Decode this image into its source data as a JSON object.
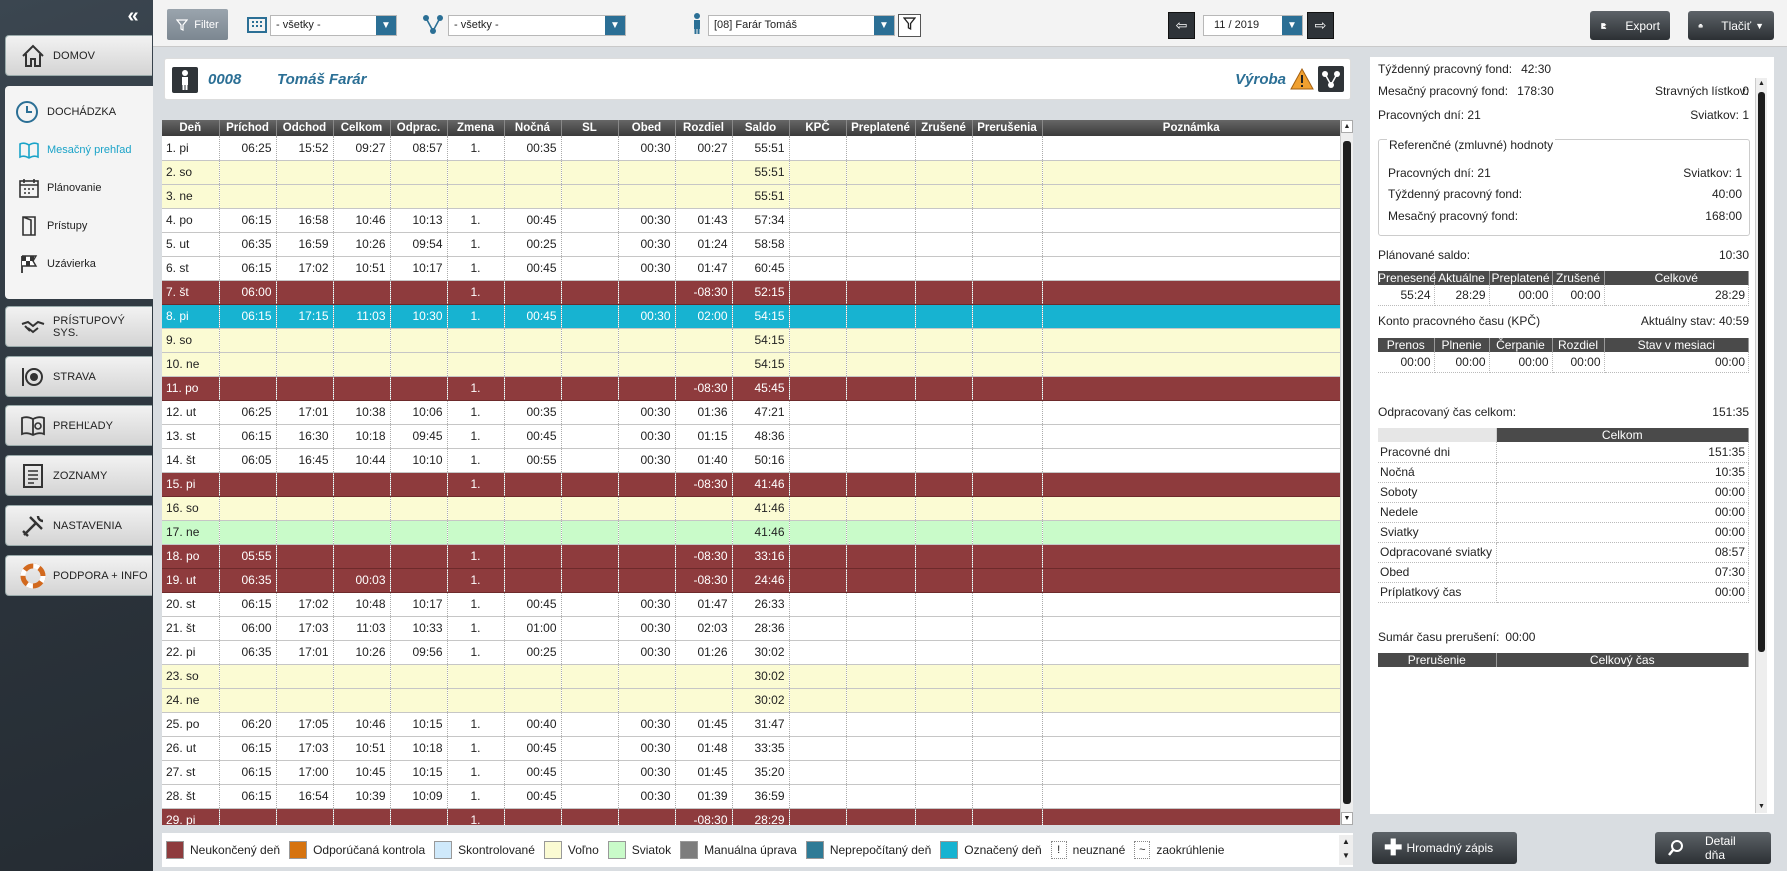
{
  "sidebar": {
    "items": [
      {
        "label": "DOMOV",
        "icon": "home-icon"
      },
      {
        "label": "DOCHÁDZKA",
        "icon": "clock-icon"
      },
      {
        "label": "PRÍSTUPOVÝ SYS.",
        "icon": "handshake-icon"
      },
      {
        "label": "STRAVA",
        "icon": "plate-icon"
      },
      {
        "label": "PREHĽADY",
        "icon": "report-icon"
      },
      {
        "label": "ZOZNAMY",
        "icon": "list-icon"
      },
      {
        "label": "NASTAVENIA",
        "icon": "tools-icon"
      },
      {
        "label": "PODPORA + INFO",
        "icon": "lifebuoy-icon"
      }
    ],
    "sub": [
      {
        "label": "Mesačný prehľad",
        "active": true
      },
      {
        "label": "Plánovanie"
      },
      {
        "label": "Prístupy"
      },
      {
        "label": "Uzávierka"
      }
    ]
  },
  "toolbar": {
    "filter": "Filter",
    "org": "- všetky -",
    "group": "- všetky -",
    "person": "[08] Farár Tomáš",
    "month": "11 / 2019",
    "export": "Export",
    "print": "Tlačiť"
  },
  "header": {
    "id": "0008",
    "name": "Tomáš Farár",
    "dept": "Výroba"
  },
  "columns": [
    "Deň",
    "Príchod",
    "Odchod",
    "Celkom",
    "Odprac.",
    "Zmena",
    "Nočná",
    "SL",
    "Obed",
    "Rozdiel",
    "Saldo",
    "KPČ",
    "Preplatené",
    "Zrušené",
    "Prerušenia",
    "Poznámka"
  ],
  "rows": [
    {
      "t": "w",
      "c": [
        "1. pi",
        "06:25",
        "15:52",
        "09:27",
        "08:57",
        "1.",
        "00:35",
        "",
        "00:30",
        "00:27",
        "55:51"
      ]
    },
    {
      "t": "y",
      "c": [
        "2. so",
        "",
        "",
        "",
        "",
        "",
        "",
        "",
        "",
        "",
        "55:51"
      ]
    },
    {
      "t": "y",
      "c": [
        "3. ne",
        "",
        "",
        "",
        "",
        "",
        "",
        "",
        "",
        "",
        "55:51"
      ]
    },
    {
      "t": "w",
      "c": [
        "4. po",
        "06:15",
        "16:58",
        "10:46",
        "10:13",
        "1.",
        "00:45",
        "",
        "00:30",
        "01:43",
        "57:34"
      ]
    },
    {
      "t": "w",
      "c": [
        "5. ut",
        "06:35",
        "16:59",
        "10:26",
        "09:54",
        "1.",
        "00:25",
        "",
        "00:30",
        "01:24",
        "58:58"
      ]
    },
    {
      "t": "w",
      "c": [
        "6. st",
        "06:15",
        "17:02",
        "10:51",
        "10:17",
        "1.",
        "00:45",
        "",
        "00:30",
        "01:47",
        "60:45"
      ]
    },
    {
      "t": "r",
      "c": [
        "7. št",
        "06:00",
        "",
        "",
        "",
        "1.",
        "",
        "",
        "",
        "-08:30",
        "52:15"
      ]
    },
    {
      "t": "c",
      "c": [
        "8. pi",
        "06:15",
        "17:15",
        "11:03",
        "10:30",
        "1.",
        "00:45",
        "",
        "00:30",
        "02:00",
        "54:15"
      ]
    },
    {
      "t": "y",
      "c": [
        "9. so",
        "",
        "",
        "",
        "",
        "",
        "",
        "",
        "",
        "",
        "54:15"
      ]
    },
    {
      "t": "y",
      "c": [
        "10. ne",
        "",
        "",
        "",
        "",
        "",
        "",
        "",
        "",
        "",
        "54:15"
      ]
    },
    {
      "t": "r",
      "c": [
        "11. po",
        "",
        "",
        "",
        "",
        "1.",
        "",
        "",
        "",
        "-08:30",
        "45:45"
      ]
    },
    {
      "t": "w",
      "c": [
        "12. ut",
        "06:25",
        "17:01",
        "10:38",
        "10:06",
        "1.",
        "00:35",
        "",
        "00:30",
        "01:36",
        "47:21"
      ]
    },
    {
      "t": "w",
      "c": [
        "13. st",
        "06:15",
        "16:30",
        "10:18",
        "09:45",
        "1.",
        "00:45",
        "",
        "00:30",
        "01:15",
        "48:36"
      ]
    },
    {
      "t": "w",
      "c": [
        "14. št",
        "06:05",
        "16:45",
        "10:44",
        "10:10",
        "1.",
        "00:55",
        "",
        "00:30",
        "01:40",
        "50:16"
      ]
    },
    {
      "t": "r",
      "c": [
        "15. pi",
        "",
        "",
        "",
        "",
        "1.",
        "",
        "",
        "",
        "-08:30",
        "41:46"
      ]
    },
    {
      "t": "y",
      "c": [
        "16. so",
        "",
        "",
        "",
        "",
        "",
        "",
        "",
        "",
        "",
        "41:46"
      ]
    },
    {
      "t": "g2",
      "c": [
        "17. ne",
        "",
        "",
        "",
        "",
        "",
        "",
        "",
        "",
        "",
        "41:46"
      ]
    },
    {
      "t": "r",
      "c": [
        "18. po",
        "05:55",
        "",
        "",
        "",
        "1.",
        "",
        "",
        "",
        "-08:30",
        "33:16"
      ]
    },
    {
      "t": "r",
      "c": [
        "19. ut",
        "06:35",
        "",
        "00:03",
        "",
        "1.",
        "",
        "",
        "",
        "-08:30",
        "24:46"
      ]
    },
    {
      "t": "w",
      "c": [
        "20. st",
        "06:15",
        "17:02",
        "10:48",
        "10:17",
        "1.",
        "00:45",
        "",
        "00:30",
        "01:47",
        "26:33"
      ]
    },
    {
      "t": "w",
      "c": [
        "21. št",
        "06:00",
        "17:03",
        "11:03",
        "10:33",
        "1.",
        "01:00",
        "",
        "00:30",
        "02:03",
        "28:36"
      ]
    },
    {
      "t": "w",
      "c": [
        "22. pi",
        "06:35",
        "17:01",
        "10:26",
        "09:56",
        "1.",
        "00:25",
        "",
        "00:30",
        "01:26",
        "30:02"
      ]
    },
    {
      "t": "y",
      "c": [
        "23. so",
        "",
        "",
        "",
        "",
        "",
        "",
        "",
        "",
        "",
        "30:02"
      ]
    },
    {
      "t": "y",
      "c": [
        "24. ne",
        "",
        "",
        "",
        "",
        "",
        "",
        "",
        "",
        "",
        "30:02"
      ]
    },
    {
      "t": "w",
      "c": [
        "25. po",
        "06:20",
        "17:05",
        "10:46",
        "10:15",
        "1.",
        "00:40",
        "",
        "00:30",
        "01:45",
        "31:47"
      ]
    },
    {
      "t": "w",
      "c": [
        "26. ut",
        "06:15",
        "17:03",
        "10:51",
        "10:18",
        "1.",
        "00:45",
        "",
        "00:30",
        "01:48",
        "33:35"
      ]
    },
    {
      "t": "w",
      "c": [
        "27. st",
        "06:15",
        "17:00",
        "10:45",
        "10:15",
        "1.",
        "00:45",
        "",
        "00:30",
        "01:45",
        "35:20"
      ]
    },
    {
      "t": "w",
      "c": [
        "28. št",
        "06:15",
        "16:54",
        "10:39",
        "10:09",
        "1.",
        "00:45",
        "",
        "00:30",
        "01:39",
        "36:59"
      ]
    },
    {
      "t": "r",
      "c": [
        "29. pi",
        "",
        "",
        "",
        "",
        "1.",
        "",
        "",
        "",
        "-08:30",
        "28:29"
      ]
    }
  ],
  "legend": [
    {
      "label": "Neukončený deň",
      "color": "#8e3b3d"
    },
    {
      "label": "Odporúčaná kontrola",
      "color": "#d6730f"
    },
    {
      "label": "Skontrolované",
      "color": "#cfe9fb"
    },
    {
      "label": "Voľno",
      "color": "#fbfbd3"
    },
    {
      "label": "Sviatok",
      "color": "#c9fbc9"
    },
    {
      "label": "Manuálna úprava",
      "color": "#7d7d7d"
    },
    {
      "label": "Neprepočítaný deň",
      "color": "#2f7b96"
    },
    {
      "label": "Označený deň",
      "color": "#17b3d1"
    }
  ],
  "legend_marks": [
    {
      "sym": "!",
      "label": "neuznané"
    },
    {
      "sym": "~",
      "label": "zaokrúhlenie"
    }
  ],
  "right": {
    "tpf_label": "Týždenný pracovný fond:",
    "tpf": "42:30",
    "mpf_label": "Mesačný pracovný fond:",
    "mpf": "178:30",
    "stravne_label": "Stravných lístkov:",
    "stravne": "0",
    "pd_label": "Pracovných dní:",
    "pd": "21",
    "sv_label": "Sviatkov:",
    "sv": "1",
    "ref_title": "Referenčné (zmluvné) hodnoty",
    "ref_pd_label": "Pracovných dní:",
    "ref_pd": "21",
    "ref_sv_label": "Sviatkov:",
    "ref_sv": "1",
    "ref_tpf_label": "Týždenný pracovný fond:",
    "ref_tpf": "40:00",
    "ref_mpf_label": "Mesačný pracovný fond:",
    "ref_mpf": "168:00",
    "plan_label": "Plánované saldo:",
    "plan": "10:30",
    "saldo_h": [
      "Prenesené",
      "Aktuálne",
      "Preplatené",
      "Zrušené",
      "Celkové"
    ],
    "saldo_v": [
      "55:24",
      "28:29",
      "00:00",
      "00:00",
      "28:29"
    ],
    "kpc_label": "Konto pracovného času (KPČ)",
    "kpc_state_label": "Aktuálny stav:",
    "kpc_state": "40:59",
    "kpc_h": [
      "Prenos",
      "Plnenie",
      "Čerpanie",
      "Rozdiel",
      "Stav v mesiaci"
    ],
    "kpc_v": [
      "00:00",
      "00:00",
      "00:00",
      "00:00",
      "00:00"
    ],
    "odpr_label": "Odpracovaný čas celkom:",
    "odpr": "151:35",
    "celkom_h": "Celkom",
    "celkom": [
      [
        "Pracovné dni",
        "151:35"
      ],
      [
        "Nočná",
        "10:35"
      ],
      [
        "Soboty",
        "00:00"
      ],
      [
        "Nedele",
        "00:00"
      ],
      [
        "Sviatky",
        "00:00"
      ],
      [
        "Odpracované sviatky",
        "08:57"
      ],
      [
        "Obed",
        "07:30"
      ],
      [
        "Príplatkový čas",
        "00:00"
      ]
    ],
    "sumar_label": "Sumár času prerušení:",
    "sumar": "00:00",
    "prer_h": [
      "Prerušenie",
      "Celkový čas"
    ]
  },
  "bottom": {
    "hromadny": "Hromadný zápis",
    "detail": "Detail dňa"
  }
}
